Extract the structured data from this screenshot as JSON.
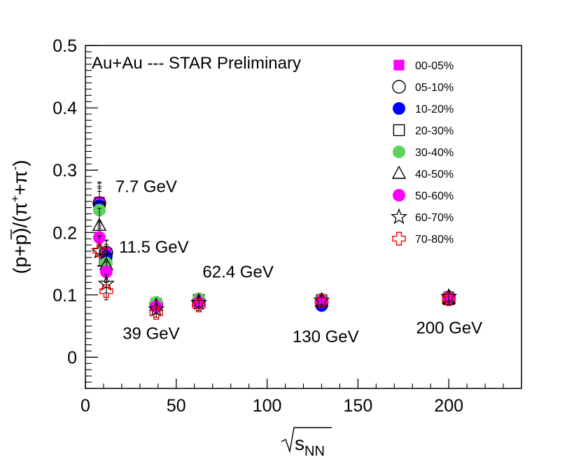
{
  "chart_data": {
    "type": "scatter",
    "title": "Au+Au  --- STAR Preliminary",
    "xlabel": "√s_NN",
    "ylabel": "(p+p̄)/(π⁺+π⁻)",
    "xlim": [
      0,
      240
    ],
    "ylim": [
      -0.05,
      0.5
    ],
    "x_ticks": [
      0,
      50,
      100,
      150,
      200
    ],
    "y_ticks": [
      0,
      0.1,
      0.2,
      0.3,
      0.4,
      0.5
    ],
    "x_tick_labels": [
      "0",
      "50",
      "100",
      "150",
      "200"
    ],
    "y_tick_labels": [
      "0",
      "0.1",
      "0.2",
      "0.3",
      "0.4",
      "0.5"
    ],
    "grid": false,
    "legend_position": "top-right",
    "annotations": [
      {
        "text": "7.7 GeV",
        "x": 16.5,
        "y": 0.265
      },
      {
        "text": "11.5 GeV",
        "x": 18.5,
        "y": 0.168
      },
      {
        "text": "62.4 GeV",
        "x": 64.5,
        "y": 0.128
      },
      {
        "text": "39 GeV",
        "x": 20.5,
        "y": 0.029
      },
      {
        "text": "130 GeV",
        "x": 114,
        "y": 0.024
      },
      {
        "text": "200 GeV",
        "x": 182,
        "y": 0.038
      }
    ],
    "series": [
      {
        "name": "00-05%",
        "marker": "filled-square",
        "color": "#ff00ff",
        "x": [
          7.7,
          11.5,
          39,
          62.4,
          130,
          200
        ],
        "y": [
          0.249,
          0.167,
          0.087,
          0.092,
          0.093,
          0.097
        ],
        "yerr": [
          0.032,
          0.02,
          0.009,
          0.009,
          0.009,
          0.009
        ]
      },
      {
        "name": "05-10%",
        "marker": "open-circle",
        "color": "#000000",
        "x": [
          7.7,
          11.5,
          39,
          62.4,
          130,
          200
        ],
        "y": [
          0.247,
          0.168,
          0.086,
          0.091,
          0.091,
          0.096
        ],
        "yerr": [
          0.032,
          0.02,
          0.009,
          0.009,
          0.009,
          0.009
        ]
      },
      {
        "name": "10-20%",
        "marker": "filled-circle",
        "color": "#0000ff",
        "x": [
          7.7,
          11.5,
          39,
          62.4,
          130,
          200
        ],
        "y": [
          0.243,
          0.162,
          0.085,
          0.089,
          0.083,
          0.095
        ],
        "yerr": [
          0.031,
          0.019,
          0.009,
          0.009,
          0.008,
          0.009
        ]
      },
      {
        "name": "20-30%",
        "marker": "open-square",
        "color": "#000000",
        "x": [
          7.7,
          11.5,
          39,
          62.4,
          130,
          200
        ],
        "y": [
          0.24,
          0.157,
          0.084,
          0.092,
          0.09,
          0.093
        ],
        "yerr": [
          0.031,
          0.019,
          0.009,
          0.009,
          0.009,
          0.009
        ]
      },
      {
        "name": "30-40%",
        "marker": "filled-circle",
        "color": "#5fd35f",
        "x": [
          7.7,
          11.5,
          39,
          62.4,
          130,
          200
        ],
        "y": [
          0.236,
          0.151,
          0.088,
          0.094,
          0.092,
          0.096
        ],
        "yerr": [
          0.03,
          0.018,
          0.009,
          0.009,
          0.009,
          0.009
        ]
      },
      {
        "name": "40-50%",
        "marker": "open-triangle",
        "color": "#000000",
        "x": [
          7.7,
          11.5,
          39,
          62.4,
          130,
          200
        ],
        "y": [
          0.211,
          0.148,
          0.083,
          0.09,
          0.09,
          0.094
        ],
        "yerr": [
          0.028,
          0.017,
          0.008,
          0.009,
          0.009,
          0.009
        ]
      },
      {
        "name": "50-60%",
        "marker": "filled-circle",
        "color": "#ff00ff",
        "x": [
          7.7,
          11.5,
          39,
          62.4,
          130,
          200
        ],
        "y": [
          0.192,
          0.137,
          0.081,
          0.088,
          0.09,
          0.095
        ],
        "yerr": [
          0.026,
          0.016,
          0.008,
          0.009,
          0.009,
          0.009
        ]
      },
      {
        "name": "60-70%",
        "marker": "open-star",
        "color": "#000000",
        "x": [
          7.7,
          11.5,
          39,
          62.4,
          130,
          200
        ],
        "y": [
          0.17,
          0.118,
          0.077,
          0.087,
          0.091,
          0.097
        ],
        "yerr": [
          0.024,
          0.015,
          0.008,
          0.009,
          0.009,
          0.009
        ]
      },
      {
        "name": "70-80%",
        "marker": "open-cross",
        "color": "#ff0000",
        "x": [
          7.7,
          11.5,
          39,
          62.4,
          130,
          200
        ],
        "y": [
          0.171,
          0.106,
          0.071,
          0.083,
          0.09,
          0.093
        ],
        "yerr": [
          0.024,
          0.014,
          0.007,
          0.008,
          0.009,
          0.009
        ]
      }
    ]
  }
}
